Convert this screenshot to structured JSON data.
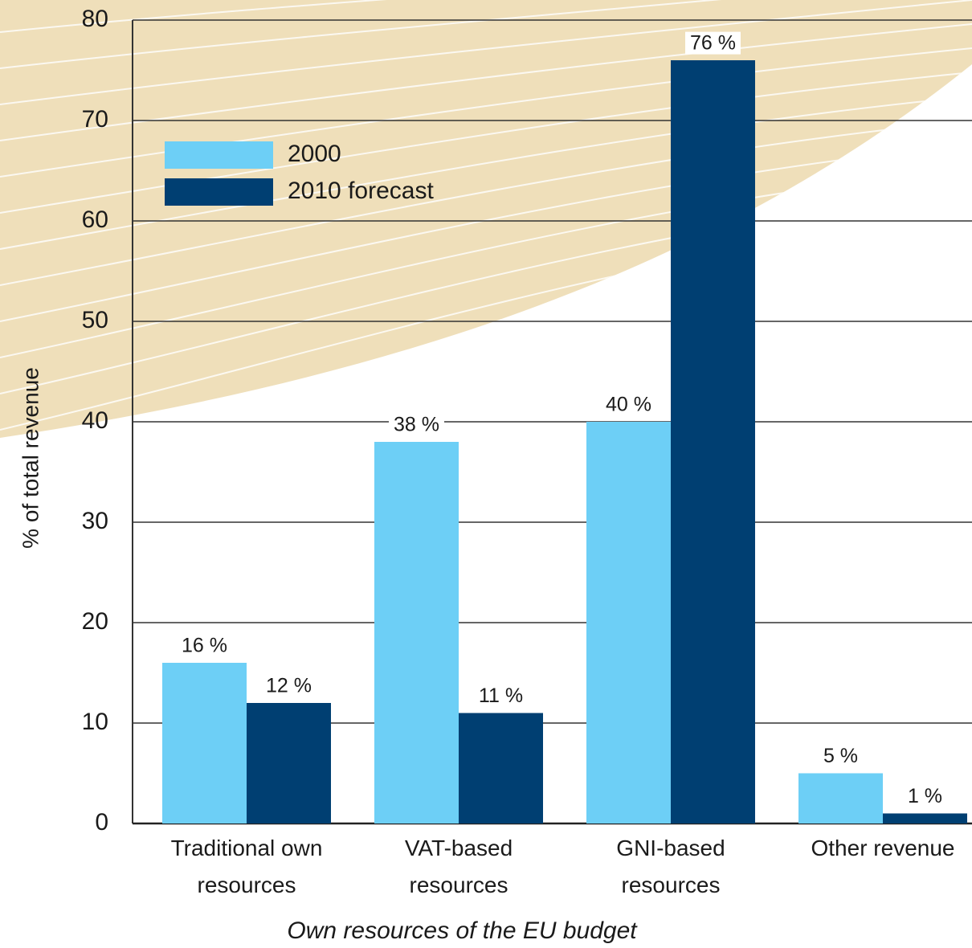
{
  "chart_data": {
    "type": "bar",
    "y_label": "% of total revenue",
    "x_label": "Own resources of the EU budget",
    "categories": [
      "Traditional own resources",
      "VAT-based resources",
      "GNI-based resources",
      "Other revenue"
    ],
    "series": [
      {
        "name": "2000",
        "color": "#6dcff6",
        "values": [
          16,
          38,
          40,
          5
        ],
        "value_labels": [
          "16 %",
          "38 %",
          "40 %",
          "5 %"
        ]
      },
      {
        "name": "2010 forecast",
        "color": "#003f72",
        "values": [
          12,
          11,
          76,
          1
        ],
        "value_labels": [
          "12 %",
          "11 %",
          "76 %",
          "1 %"
        ]
      }
    ],
    "ylim": [
      0,
      80
    ],
    "yticks": [
      0,
      10,
      20,
      30,
      40,
      50,
      60,
      70,
      80
    ],
    "grid": true
  }
}
